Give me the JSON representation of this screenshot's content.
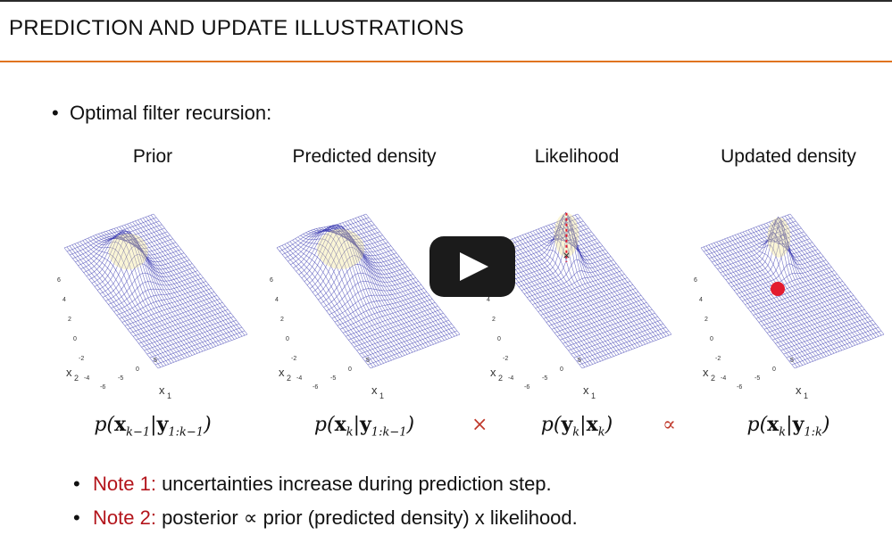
{
  "slide": {
    "title": "PREDICTION AND UPDATE ILLUSTRATIONS",
    "bullet": "Optimal filter recursion:",
    "panels": [
      {
        "title": "Prior",
        "formula_main": "p(",
        "formula_sub": "k−1",
        "formula_cond": "1:k−1"
      },
      {
        "title": "Predicted density"
      },
      {
        "title": "Likelihood"
      },
      {
        "title": "Updated density"
      }
    ],
    "operators": {
      "times": "×",
      "proportional": "∝"
    },
    "notes": [
      {
        "label": "Note 1:",
        "text": "uncertainties increase during prediction step."
      },
      {
        "label": "Note 2:",
        "text": "posterior ∝ prior (predicted density) x likelihood."
      }
    ],
    "axis": {
      "x1": "x",
      "x1_sub": "1",
      "x2": "x",
      "x2_sub": "2",
      "ticks_x": [
        "-6",
        "-5",
        "0",
        "5"
      ],
      "ticks_y": [
        "6",
        "4",
        "2",
        "0",
        "-2",
        "-4"
      ]
    }
  },
  "video": {
    "play_icon": "play-icon"
  },
  "colors": {
    "accent": "#e0731f",
    "note": "#b3141b",
    "grid": "#3b3bb0",
    "marker": "#e31b2e"
  }
}
